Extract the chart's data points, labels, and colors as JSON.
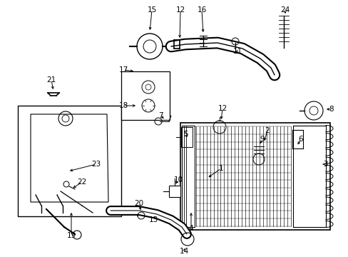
{
  "bg_color": "#ffffff",
  "lc": "#000000",
  "fig_w": 4.89,
  "fig_h": 3.6,
  "dpi": 100,
  "label_fs": 7.5,
  "small_fs": 6.5
}
